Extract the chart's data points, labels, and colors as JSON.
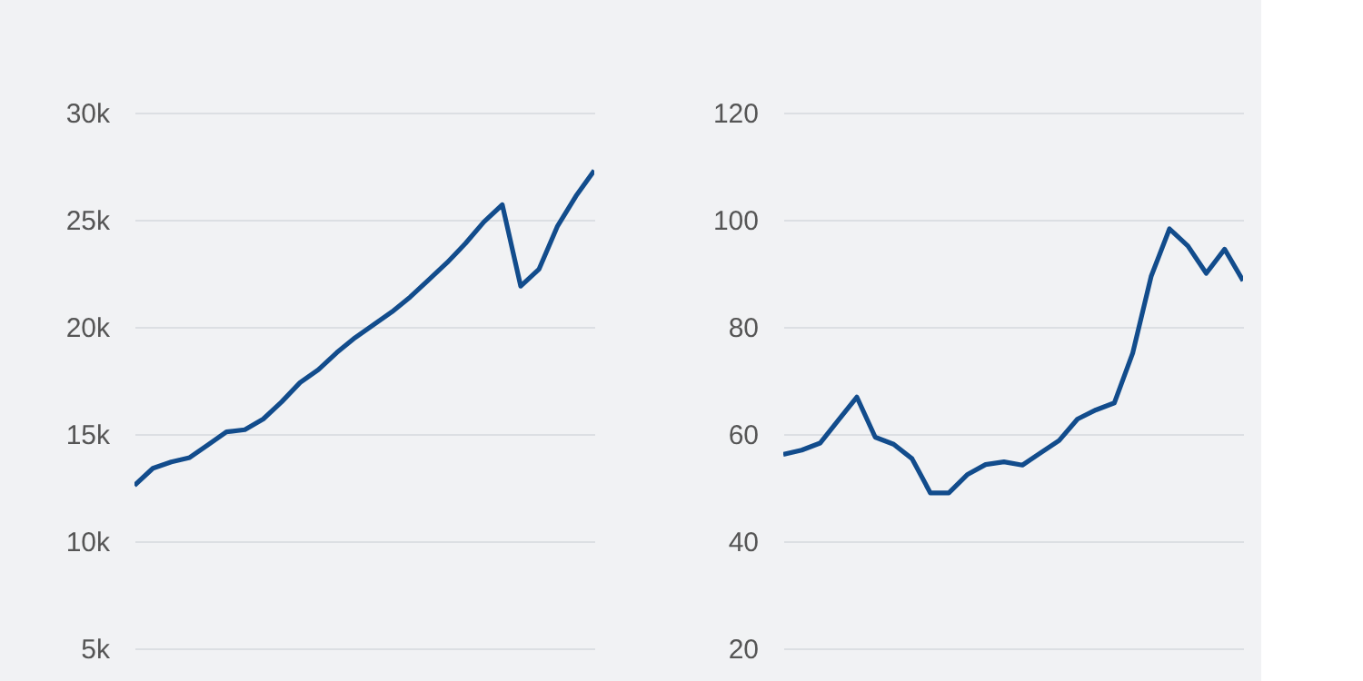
{
  "chart_data": [
    {
      "type": "line",
      "categories": [
        null,
        null,
        null,
        null,
        null,
        null,
        null,
        null,
        null,
        null,
        null,
        null,
        null,
        null,
        null,
        null,
        null,
        null,
        null,
        null,
        null,
        null,
        null,
        null,
        null,
        null
      ],
      "series": [
        {
          "color": "#124c8c",
          "values": [
            12600,
            13400,
            13700,
            13900,
            14500,
            15100,
            15200,
            15700,
            16500,
            17400,
            18000,
            18800,
            19500,
            20100,
            20700,
            21400,
            22200,
            23000,
            23900,
            24900,
            25700,
            21900,
            22700,
            24700,
            26100,
            27300
          ]
        }
      ],
      "ylim": [
        5000,
        30000
      ],
      "yticks": [
        {
          "value": 5000,
          "label": "5k"
        },
        {
          "value": 10000,
          "label": "10k"
        },
        {
          "value": 15000,
          "label": "15k"
        },
        {
          "value": 20000,
          "label": "20k"
        },
        {
          "value": 25000,
          "label": "25k"
        },
        {
          "value": 30000,
          "label": "30k"
        }
      ],
      "grid": "y",
      "tick_labels": "y"
    },
    {
      "type": "line",
      "categories": [
        null,
        null,
        null,
        null,
        null,
        null,
        null,
        null,
        null,
        null,
        null,
        null,
        null,
        null,
        null,
        null,
        null,
        null,
        null,
        null,
        null,
        null,
        null,
        null,
        null,
        null
      ],
      "series": [
        {
          "color": "#124c8c",
          "values": [
            56.2,
            57.0,
            58.3,
            62.6,
            66.9,
            59.4,
            58.1,
            55.4,
            49.0,
            49.0,
            52.4,
            54.3,
            54.8,
            54.2,
            56.5,
            58.8,
            62.8,
            64.5,
            65.8,
            75.1,
            89.4,
            98.3,
            95.1,
            90.0,
            94.5,
            88.6
          ]
        }
      ],
      "ylim": [
        20,
        120
      ],
      "yticks": [
        20,
        40,
        60,
        80,
        100,
        120
      ],
      "grid": "y",
      "tick_labels": "y"
    }
  ]
}
